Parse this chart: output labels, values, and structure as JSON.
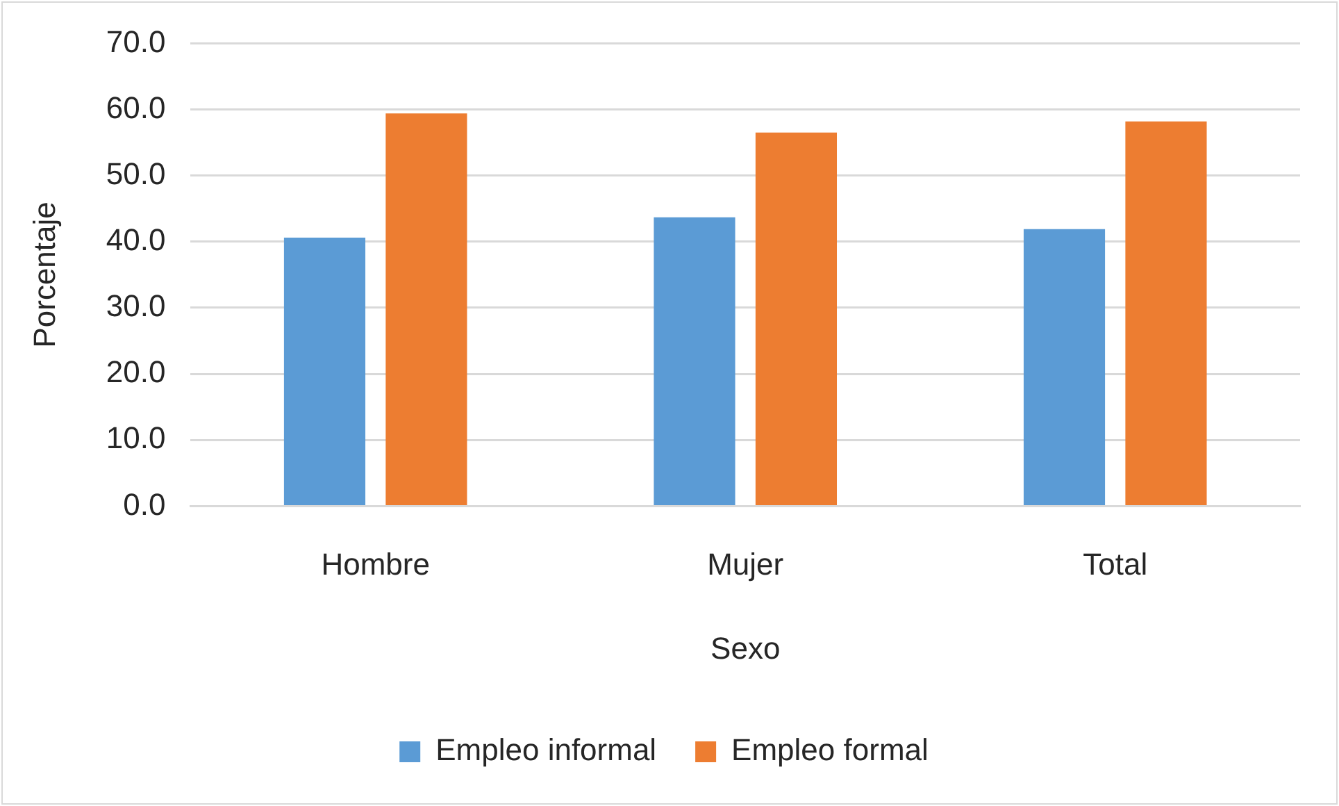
{
  "chart_data": {
    "type": "bar",
    "xlabel": "Sexo",
    "ylabel": "Porcentaje",
    "categories": [
      "Hombre",
      "Mujer",
      "Total"
    ],
    "series": [
      {
        "name": "Empleo informal",
        "color": "#5b9bd5",
        "values": [
          40.6,
          43.7,
          41.9
        ]
      },
      {
        "name": "Empleo formal",
        "color": "#ed7d31",
        "values": [
          59.4,
          56.5,
          58.2
        ]
      }
    ],
    "ylim": [
      0,
      70
    ],
    "yticks": [
      {
        "value": 0,
        "label": "0.0"
      },
      {
        "value": 10,
        "label": "10.0"
      },
      {
        "value": 20,
        "label": "20.0"
      },
      {
        "value": 30,
        "label": "30.0"
      },
      {
        "value": 40,
        "label": "40.0"
      },
      {
        "value": 50,
        "label": "50.0"
      },
      {
        "value": 60,
        "label": "60.0"
      },
      {
        "value": 70,
        "label": "70.0"
      }
    ],
    "grid": "y",
    "legend": "bottom"
  }
}
